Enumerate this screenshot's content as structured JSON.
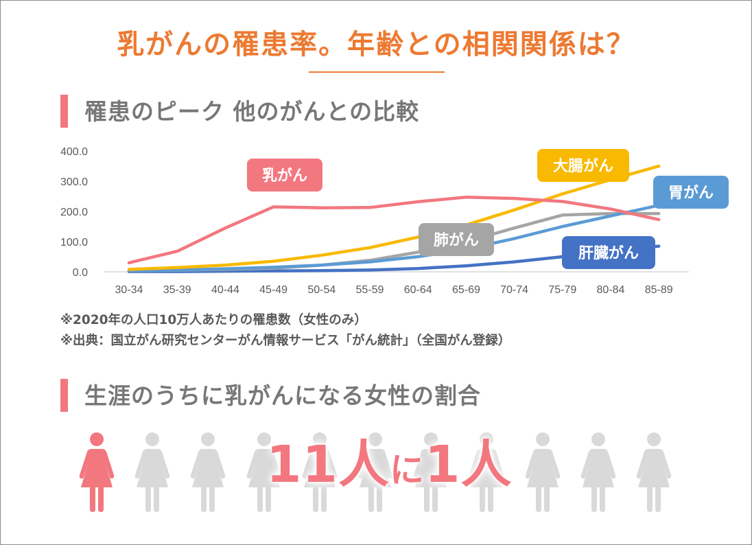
{
  "title": "乳がんの罹患率。年齢との相関関係は？",
  "section1": {
    "title": "罹患のピーク 他のがんとの比較"
  },
  "section2": {
    "title": "生涯のうちに乳がんになる女性の割合"
  },
  "notes": [
    "※2020年の人口10万人あたりの罹患数（女性のみ）",
    "※出典：国立がん研究センターがん情報サービス「がん統計」（全国がん登録）"
  ],
  "ratio": {
    "num1": "11",
    "unit1": "人",
    "connector": "に",
    "num2": "1",
    "unit2": "人"
  },
  "figures": {
    "count": 11,
    "highlighted": 1,
    "highlight_color": "#f2777f",
    "other_color": "#d9d9d9"
  },
  "colors": {
    "title": "#ec7a32",
    "accent_bar": "#f2777f",
    "section_text": "#777777"
  },
  "chart_data": {
    "type": "line",
    "categories": [
      "30-34",
      "35-39",
      "40-44",
      "45-49",
      "50-54",
      "55-59",
      "60-64",
      "65-69",
      "70-74",
      "75-79",
      "80-84",
      "85-89"
    ],
    "ylim": [
      0,
      400
    ],
    "yticks": [
      "0.0",
      "100.0",
      "200.0",
      "300.0",
      "400.0"
    ],
    "grid": false,
    "legend": "labels on lines",
    "series": [
      {
        "name": "乳がん",
        "color": "#f2777f",
        "values": [
          30,
          68,
          145,
          215,
          212,
          213,
          232,
          247,
          243,
          233,
          208,
          173
        ]
      },
      {
        "name": "大腸がん",
        "color": "#f8b900",
        "values": [
          8,
          14,
          22,
          35,
          55,
          80,
          115,
          155,
          205,
          258,
          305,
          350
        ]
      },
      {
        "name": "胃がん",
        "color": "#5b9bd5",
        "values": [
          3,
          6,
          10,
          15,
          22,
          33,
          50,
          75,
          110,
          150,
          185,
          220
        ]
      },
      {
        "name": "肺がん",
        "color": "#a5a5a5",
        "values": [
          3,
          5,
          8,
          12,
          22,
          38,
          65,
          100,
          145,
          188,
          193,
          193
        ]
      },
      {
        "name": "肝臓がん",
        "color": "#4472c4",
        "values": [
          1,
          1,
          2,
          3,
          4,
          6,
          11,
          20,
          33,
          50,
          68,
          85
        ]
      }
    ]
  }
}
